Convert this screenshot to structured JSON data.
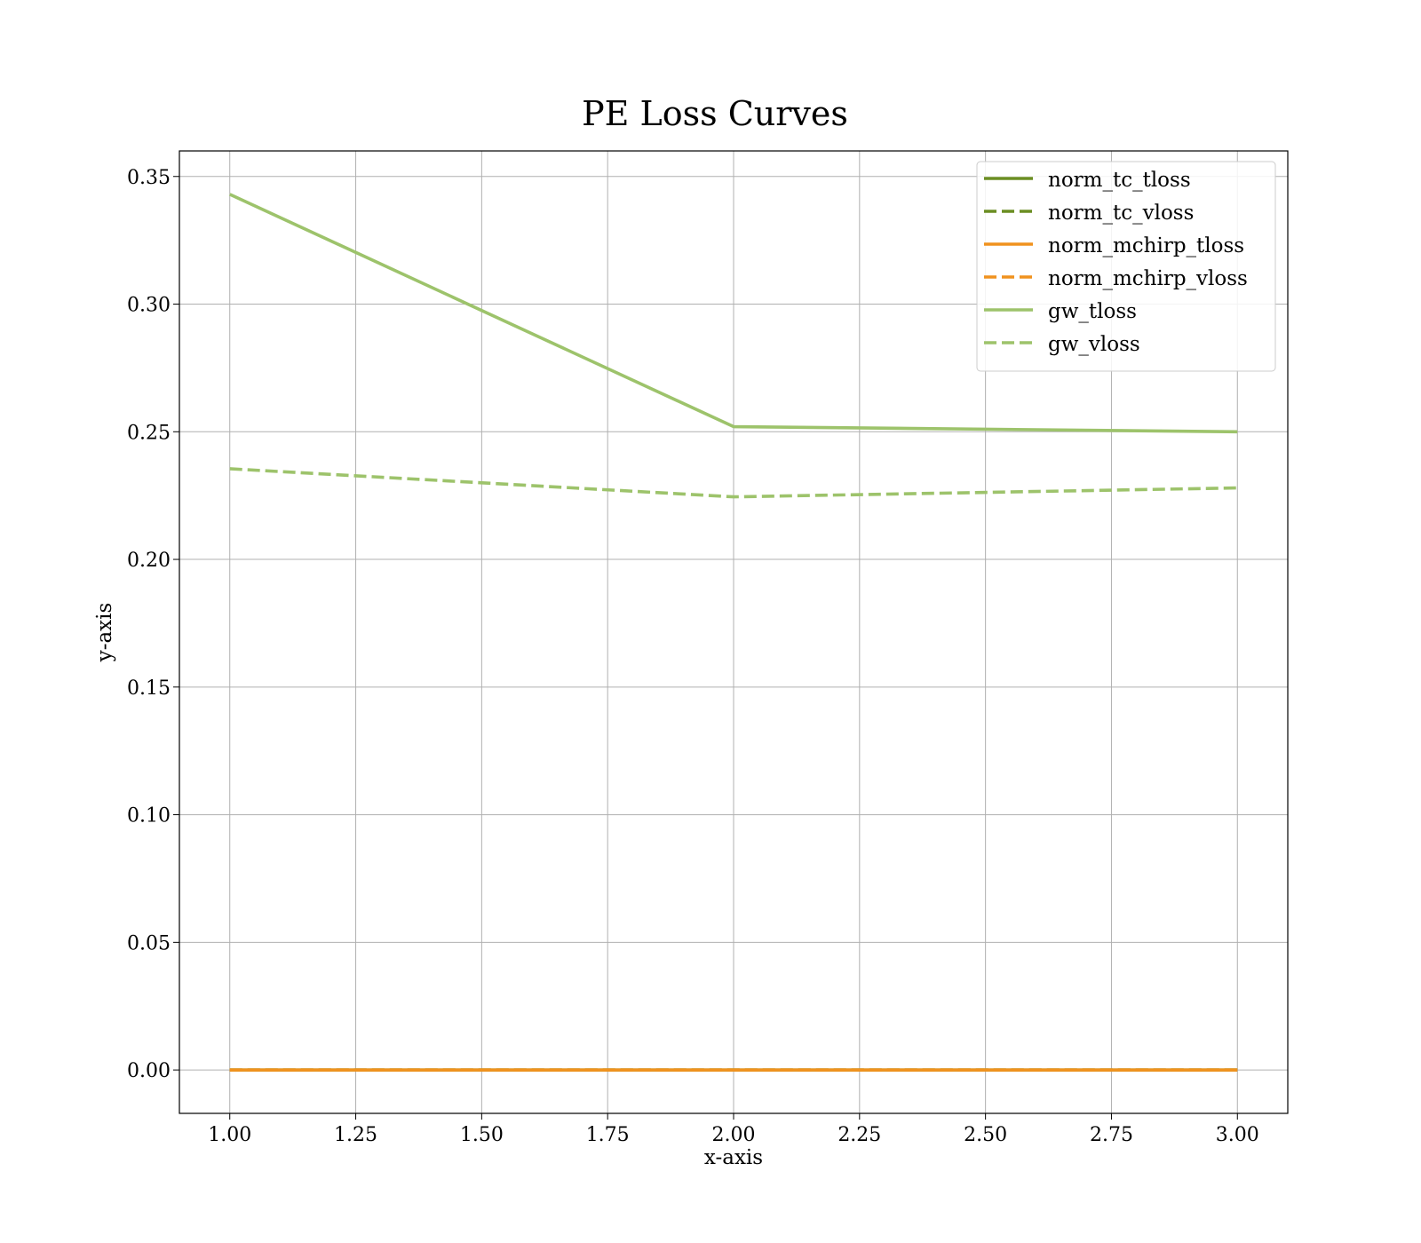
{
  "chart_data": {
    "type": "line",
    "title": "PE Loss Curves",
    "xlabel": "x-axis",
    "ylabel": "y-axis",
    "xlim": [
      0.9,
      3.1
    ],
    "ylim": [
      -0.017,
      0.36
    ],
    "xticks": [
      1.0,
      1.25,
      1.5,
      1.75,
      2.0,
      2.25,
      2.5,
      2.75,
      3.0
    ],
    "xtick_labels": [
      "1.00",
      "1.25",
      "1.50",
      "1.75",
      "2.00",
      "2.25",
      "2.50",
      "2.75",
      "3.00"
    ],
    "yticks": [
      0.0,
      0.05,
      0.1,
      0.15,
      0.2,
      0.25,
      0.3,
      0.35
    ],
    "ytick_labels": [
      "0.00",
      "0.05",
      "0.10",
      "0.15",
      "0.20",
      "0.25",
      "0.30",
      "0.35"
    ],
    "grid": true,
    "legend_position": "top-right",
    "x": [
      1,
      2,
      3
    ],
    "series": [
      {
        "name": "norm_tc_tloss",
        "values": [
          0.0,
          0.0,
          0.0
        ],
        "color": "#6b8e23",
        "dash": "solid"
      },
      {
        "name": "norm_tc_vloss",
        "values": [
          0.0,
          0.0,
          0.0
        ],
        "color": "#6b8e23",
        "dash": "dashed"
      },
      {
        "name": "norm_mchirp_tloss",
        "values": [
          0.0,
          0.0,
          0.0
        ],
        "color": "#f0921e",
        "dash": "solid"
      },
      {
        "name": "norm_mchirp_vloss",
        "values": [
          0.0,
          0.0,
          0.0
        ],
        "color": "#f0921e",
        "dash": "dashed"
      },
      {
        "name": "gw_tloss",
        "values": [
          0.343,
          0.252,
          0.25
        ],
        "color": "#9dc36b",
        "dash": "solid"
      },
      {
        "name": "gw_vloss",
        "values": [
          0.2355,
          0.2245,
          0.228
        ],
        "color": "#9dc36b",
        "dash": "dashed"
      }
    ]
  }
}
